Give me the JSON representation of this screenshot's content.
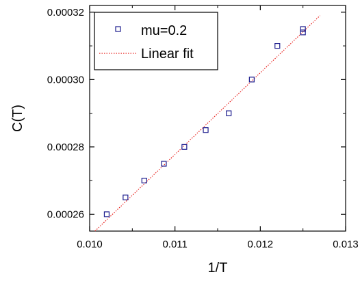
{
  "chart_data": {
    "type": "scatter",
    "xlabel": "1/T",
    "ylabel": "C(T)",
    "xlim": [
      0.01,
      0.013
    ],
    "ylim": [
      0.000255,
      0.000322
    ],
    "x_ticks": [
      "0.010",
      "0.011",
      "0.012",
      "0.013"
    ],
    "y_ticks": [
      "0.00026",
      "0.00028",
      "0.00030",
      "0.00032"
    ],
    "x_tick_values": [
      0.01,
      0.011,
      0.012,
      0.013
    ],
    "y_tick_values": [
      0.00026,
      0.00028,
      0.0003,
      0.00032
    ],
    "grid": false,
    "legend_position": "top-left",
    "series": [
      {
        "name": "mu=0.2",
        "kind": "scatter",
        "marker": "open-square",
        "color": "#1a1a8c",
        "x": [
          0.0102,
          0.01042,
          0.01064,
          0.01087,
          0.01111,
          0.01136,
          0.01163,
          0.0119,
          0.0122,
          0.0125,
          0.0125
        ],
        "y": [
          0.00026,
          0.000265,
          0.00027,
          0.000275,
          0.00028,
          0.000285,
          0.00029,
          0.0003,
          0.00031,
          0.000314,
          0.000315
        ]
      },
      {
        "name": "Linear fit",
        "kind": "line",
        "style": "dotted",
        "color": "#e8201c",
        "x": [
          0.01,
          0.0127
        ],
        "y": [
          0.0002535,
          0.000319
        ]
      }
    ]
  }
}
